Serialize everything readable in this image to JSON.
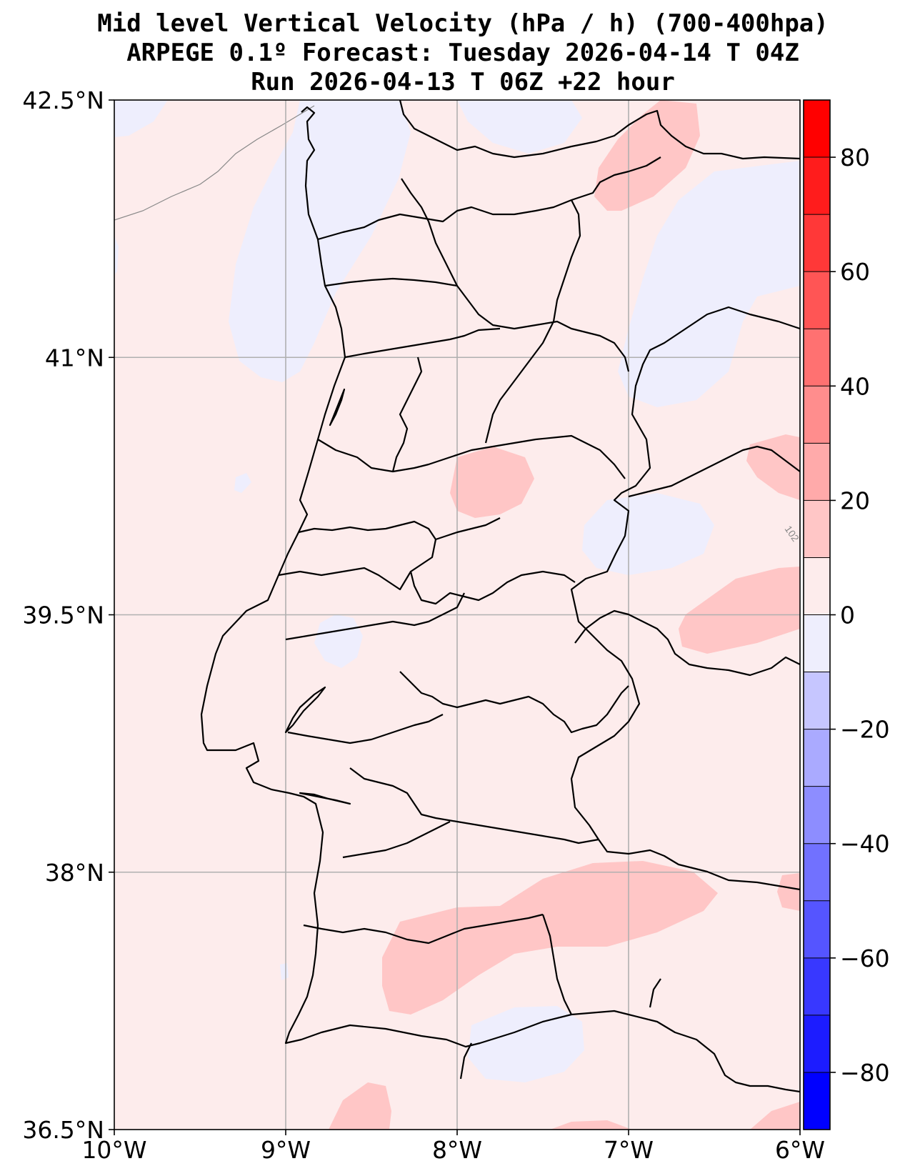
{
  "title": {
    "line1": "Mid level Vertical Velocity (hPa / h)  (700-400hpa)",
    "line2": "ARPEGE 0.1º Forecast: Tuesday 2026-04-14 T 04Z",
    "line3": "Run 2026-04-13 T 06Z +22 hour"
  },
  "map": {
    "lon_range": [
      -10,
      -6
    ],
    "lat_range": [
      36.5,
      42.5
    ],
    "background_color": "#fdecec",
    "xticks": [
      {
        "value": -10,
        "label": "10°W"
      },
      {
        "value": -9,
        "label": "9°W"
      },
      {
        "value": -8,
        "label": "8°W"
      },
      {
        "value": -7,
        "label": "7°W"
      },
      {
        "value": -6,
        "label": "6°W"
      }
    ],
    "yticks": [
      {
        "value": 42.5,
        "label": "42.5°N"
      },
      {
        "value": 41,
        "label": "41°N"
      },
      {
        "value": 39.5,
        "label": "39.5°N"
      },
      {
        "value": 38,
        "label": "38°N"
      },
      {
        "value": 36.5,
        "label": "36.5°N"
      }
    ],
    "isobar_label": "102"
  },
  "colorbar": {
    "min": -90,
    "max": 90,
    "levels": [
      -90,
      -80,
      -70,
      -60,
      -50,
      -40,
      -30,
      -20,
      -10,
      0,
      10,
      20,
      30,
      40,
      50,
      60,
      70,
      80,
      90
    ],
    "colors": [
      "#0000ff",
      "#1c1cff",
      "#3838ff",
      "#5555ff",
      "#7171ff",
      "#8d8dff",
      "#aaaaff",
      "#c6c6ff",
      "#eeeefd",
      "#fdecec",
      "#ffc6c6",
      "#ffaaaa",
      "#ff8d8d",
      "#ff7171",
      "#ff5555",
      "#ff3838",
      "#ff1c1c",
      "#ff0000"
    ],
    "ticks": [
      {
        "value": 80,
        "label": "80"
      },
      {
        "value": 60,
        "label": "60"
      },
      {
        "value": 40,
        "label": "40"
      },
      {
        "value": 20,
        "label": "20"
      },
      {
        "value": 0,
        "label": "0"
      },
      {
        "value": -20,
        "label": "−20"
      },
      {
        "value": -40,
        "label": "−40"
      },
      {
        "value": -60,
        "label": "−60"
      },
      {
        "value": -80,
        "label": "−80"
      }
    ]
  }
}
